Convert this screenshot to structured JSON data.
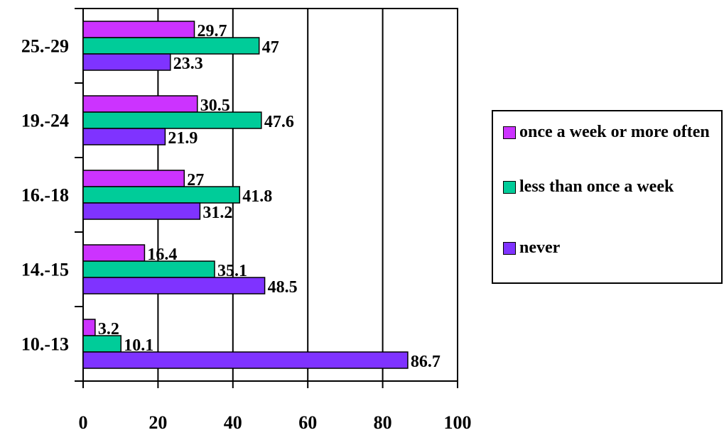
{
  "chart_data": {
    "type": "bar",
    "orientation": "horizontal",
    "categories": [
      "10.-13",
      "14.-15",
      "16.-18",
      "19.-24",
      "25.-29"
    ],
    "series": [
      {
        "name": "once a week or more often",
        "color": "#cc33ff",
        "values": [
          3.2,
          16.4,
          27,
          30.5,
          29.7
        ]
      },
      {
        "name": "less than once a week",
        "color": "#00cc99",
        "values": [
          10.1,
          35.1,
          41.8,
          47.6,
          47
        ]
      },
      {
        "name": "never",
        "color": "#7f33ff",
        "values": [
          86.7,
          48.5,
          31.2,
          21.9,
          23.3
        ]
      }
    ],
    "xlim": [
      0,
      100
    ],
    "xticks": [
      "0",
      "20",
      "40",
      "60",
      "80",
      "100"
    ],
    "title": "",
    "xlabel": "",
    "ylabel": "",
    "grid": "vertical",
    "legend_position": "right"
  }
}
